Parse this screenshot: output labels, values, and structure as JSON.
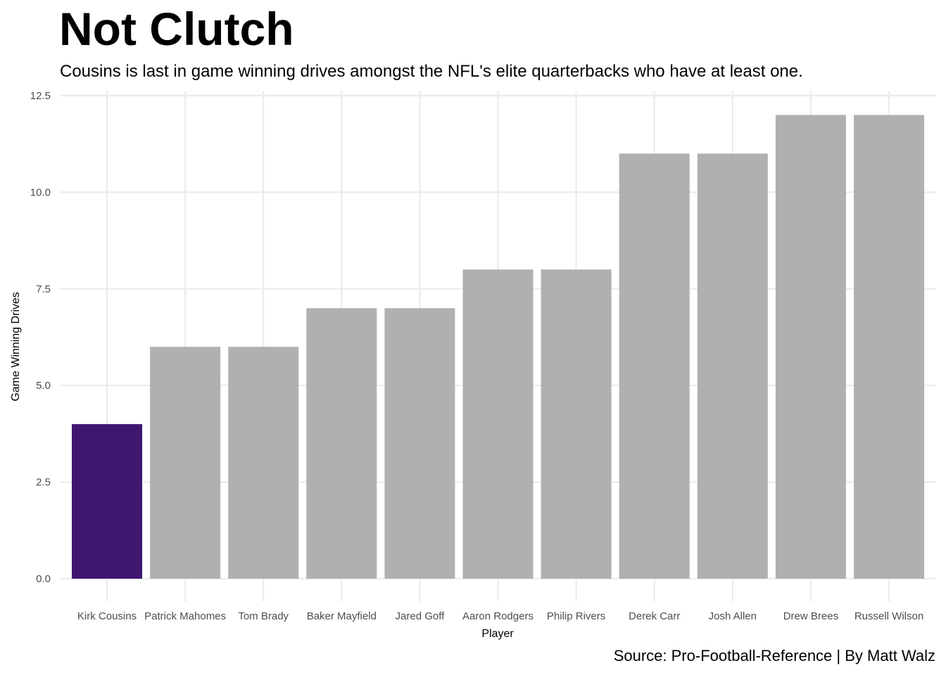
{
  "chart_data": {
    "type": "bar",
    "title": "Not Clutch",
    "subtitle": "Cousins is last in game winning drives amongst the NFL's elite quarterbacks who have at least one.",
    "caption": "Source: Pro-Football-Reference | By Matt Walz",
    "xlabel": "Player",
    "ylabel": "Game Winning Drives",
    "categories": [
      "Kirk Cousins",
      "Patrick Mahomes",
      "Tom Brady",
      "Baker Mayfield",
      "Jared Goff",
      "Aaron Rodgers",
      "Philip Rivers",
      "Derek Carr",
      "Josh Allen",
      "Drew Brees",
      "Russell Wilson"
    ],
    "values": [
      4,
      6,
      6,
      7,
      7,
      8,
      8,
      11,
      11,
      12,
      12
    ],
    "highlight": "Kirk Cousins",
    "colors": {
      "highlight": "#3f1670",
      "default": "#b0b0b0",
      "grid": "#ebebeb"
    },
    "ylim": [
      0,
      12.5
    ],
    "yticks": [
      "0.0",
      "2.5",
      "5.0",
      "7.5",
      "10.0",
      "12.5"
    ],
    "grid": true,
    "legend": "none"
  }
}
